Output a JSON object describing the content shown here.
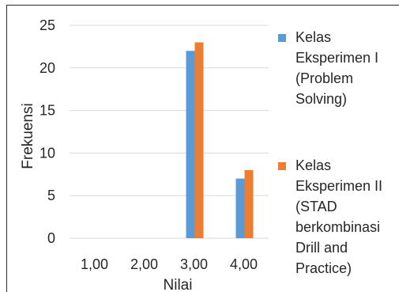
{
  "chart_data": {
    "type": "bar",
    "categories": [
      "1,00",
      "2,00",
      "3,00",
      "4,00"
    ],
    "series": [
      {
        "name": "Kelas Eksperimen I (Problem Solving)",
        "color": "#5B9BD5",
        "values": [
          0,
          0,
          22,
          7
        ]
      },
      {
        "name": "Kelas Eksperimen II (STAD berkombinasi Drill and Practice)",
        "color": "#ED7D31",
        "values": [
          0,
          0,
          23,
          8
        ]
      }
    ],
    "title": "",
    "xlabel": "Nilai",
    "ylabel": "Frekuensi",
    "ylim": [
      0,
      25
    ],
    "yticks": [
      "0",
      "5",
      "10",
      "15",
      "20",
      "25"
    ],
    "grid": "horizontal",
    "legend_position": "right"
  },
  "legend": {
    "series1_label": "Kelas\nEksperimen I\n(Problem\nSolving)",
    "series2_label": "Kelas\nEksperimen II\n(STAD\nberkombinasi\nDrill and\nPractice)"
  }
}
